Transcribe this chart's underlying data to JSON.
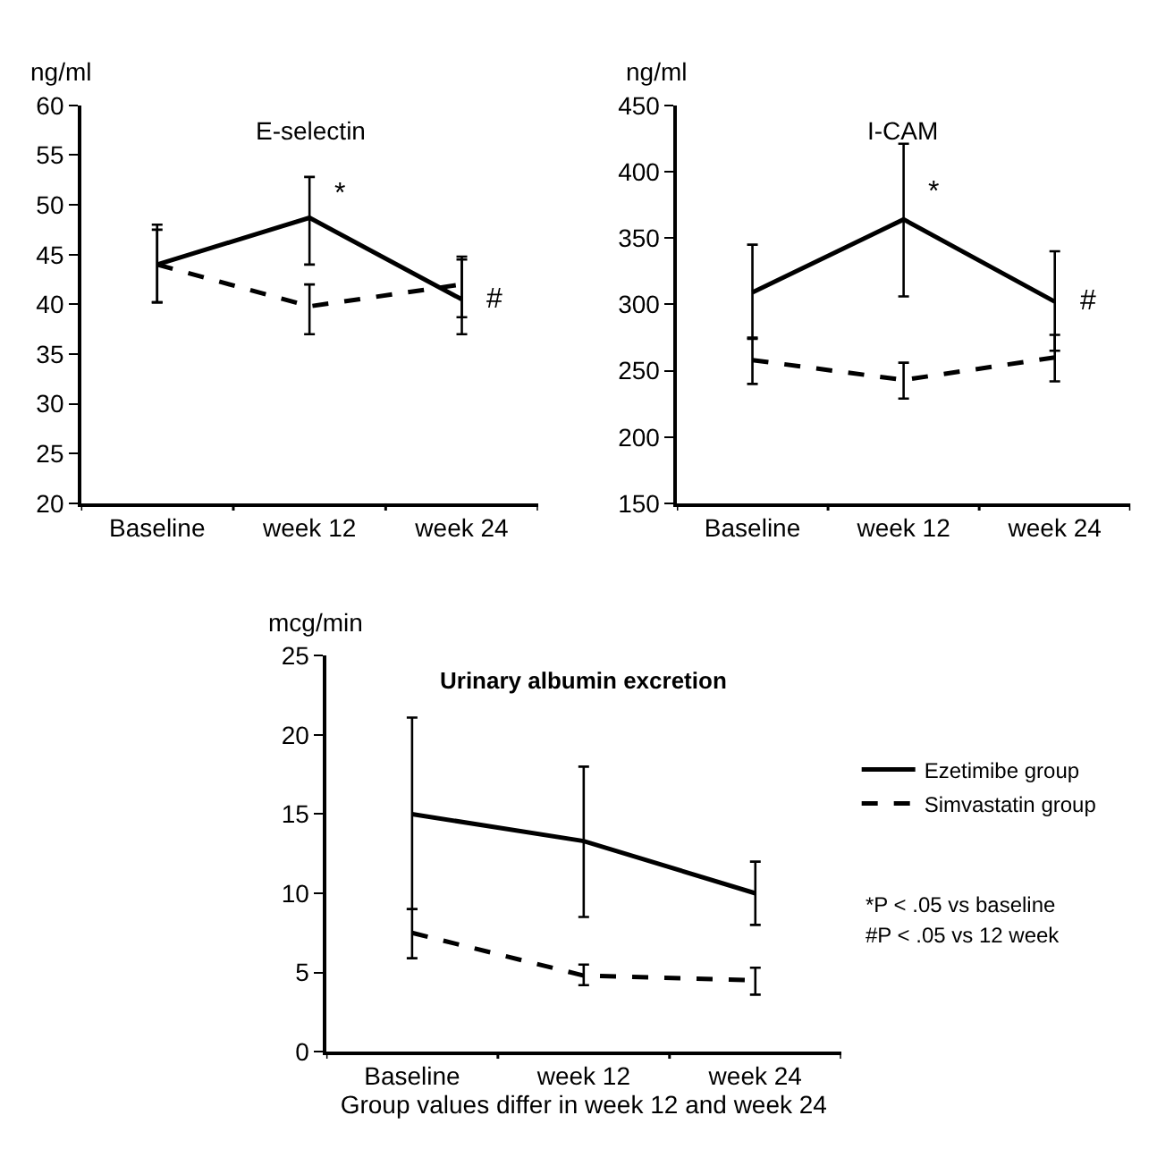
{
  "chart_data": [
    {
      "type": "line",
      "title": "E-selectin",
      "ylabel": "ng/ml",
      "categories": [
        "Baseline",
        "week 12",
        "week 24"
      ],
      "ylim": [
        20,
        60
      ],
      "yticks": [
        20,
        25,
        30,
        35,
        40,
        45,
        50,
        55,
        60
      ],
      "legend": false,
      "series": [
        {
          "color": "#000000",
          "line_style": "solid",
          "values": [
            44,
            48.7,
            40.5
          ],
          "errors": [
            [
              40.2,
              47.5
            ],
            [
              44,
              52.8
            ],
            [
              37,
              44.5
            ]
          ]
        },
        {
          "color": "#000000",
          "line_style": "dashed",
          "values": [
            44,
            39.8,
            42
          ],
          "errors": [
            [
              40.2,
              48
            ],
            [
              37,
              42
            ],
            [
              38.7,
              44.8
            ]
          ]
        }
      ],
      "annotations": [
        {
          "text": "*",
          "x": "week 12",
          "y": 51
        },
        {
          "text": "#",
          "x": "week 24",
          "y": 40.5
        }
      ]
    },
    {
      "type": "line",
      "title": "I-CAM",
      "ylabel": "ng/ml",
      "categories": [
        "Baseline",
        "week 12",
        "week 24"
      ],
      "ylim": [
        150,
        450
      ],
      "yticks": [
        150,
        200,
        250,
        300,
        350,
        400,
        450
      ],
      "legend": false,
      "series": [
        {
          "color": "#000000",
          "line_style": "solid",
          "values": [
            309,
            364,
            302
          ],
          "errors": [
            [
              274,
              345
            ],
            [
              306,
              421
            ],
            [
              265,
              340
            ]
          ]
        },
        {
          "color": "#000000",
          "line_style": "dashed",
          "values": [
            258,
            243,
            260
          ],
          "errors": [
            [
              240,
              275
            ],
            [
              229,
              256
            ],
            [
              242,
              277
            ]
          ]
        }
      ],
      "annotations": [
        {
          "text": "*",
          "x": "week 12",
          "y": 385
        },
        {
          "text": "#",
          "x": "week 24",
          "y": 302
        }
      ]
    },
    {
      "type": "line",
      "title": "Urinary albumin excretion",
      "ylabel": "mcg/min",
      "xlabel": "Group values differ in week 12 and week 24",
      "categories": [
        "Baseline",
        "week 12",
        "week 24"
      ],
      "ylim": [
        0,
        25
      ],
      "yticks": [
        0,
        5,
        10,
        15,
        20,
        25
      ],
      "legend": "right",
      "series": [
        {
          "name": "Ezetimibe group",
          "color": "#000000",
          "line_style": "solid",
          "values": [
            15,
            13.3,
            10
          ],
          "errors": [
            [
              9,
              21.1
            ],
            [
              8.5,
              18
            ],
            [
              8,
              12
            ]
          ]
        },
        {
          "name": "Simvastatin group",
          "color": "#000000",
          "line_style": "dashed",
          "values": [
            7.5,
            4.8,
            4.5
          ],
          "errors": [
            [
              5.9,
              9
            ],
            [
              4.2,
              5.5
            ],
            [
              3.6,
              5.3
            ]
          ]
        }
      ],
      "annotations": [
        "*P < .05 vs baseline",
        "#P < .05 vs 12 week"
      ]
    }
  ]
}
